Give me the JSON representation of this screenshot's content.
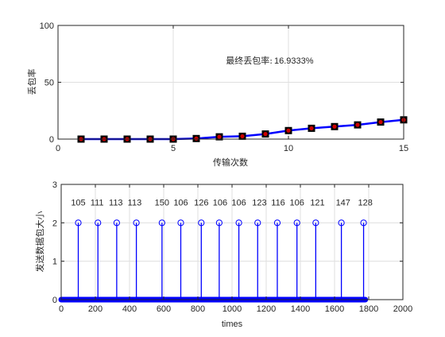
{
  "chart_data": [
    {
      "type": "line",
      "xlabel": "传输次数",
      "ylabel": "丢包率",
      "xlim": [
        0,
        15
      ],
      "ylim": [
        0,
        100
      ],
      "xticks": [
        "0",
        "5",
        "10",
        "15"
      ],
      "yticks": [
        "0",
        "50",
        "100"
      ],
      "grid": true,
      "series_color": "#0000ff",
      "marker_edge_color": "#000000",
      "marker_face_color": "#cc0000",
      "x": [
        1,
        2,
        3,
        4,
        5,
        6,
        7,
        8,
        9,
        10,
        11,
        12,
        13,
        14,
        15
      ],
      "y": [
        0,
        0,
        0,
        0,
        0,
        0.5,
        2,
        2.5,
        4.5,
        7.5,
        9.5,
        11,
        12.5,
        15,
        16.9333
      ],
      "annotation_label": "最终丢包率:",
      "annotation_value": "16.9333%"
    },
    {
      "type": "stem",
      "xlabel": "times",
      "ylabel": "发送数据包大小",
      "xlim": [
        0,
        2000
      ],
      "ylim": [
        0,
        3
      ],
      "xticks": [
        "0",
        "200",
        "400",
        "600",
        "800",
        "1000",
        "1200",
        "1400",
        "1600",
        "1800",
        "2000"
      ],
      "yticks": [
        "0",
        "1",
        "2",
        "3"
      ],
      "grid": true,
      "series_color": "#0000ff",
      "zero_stem_range": [
        0,
        1780
      ],
      "stems_x": [
        100,
        215,
        325,
        440,
        590,
        700,
        820,
        925,
        1040,
        1150,
        1265,
        1380,
        1490,
        1640,
        1770
      ],
      "stems_y": 2,
      "labels": [
        {
          "x": 100,
          "text": "105"
        },
        {
          "x": 210,
          "text": "111"
        },
        {
          "x": 320,
          "text": "113"
        },
        {
          "x": 430,
          "text": "113"
        },
        {
          "x": 590,
          "text": "150"
        },
        {
          "x": 700,
          "text": "106"
        },
        {
          "x": 820,
          "text": "126"
        },
        {
          "x": 930,
          "text": "106"
        },
        {
          "x": 1040,
          "text": "106"
        },
        {
          "x": 1160,
          "text": "123"
        },
        {
          "x": 1270,
          "text": "116"
        },
        {
          "x": 1380,
          "text": "106"
        },
        {
          "x": 1500,
          "text": "121"
        },
        {
          "x": 1650,
          "text": "147"
        },
        {
          "x": 1780,
          "text": "128"
        }
      ]
    }
  ]
}
